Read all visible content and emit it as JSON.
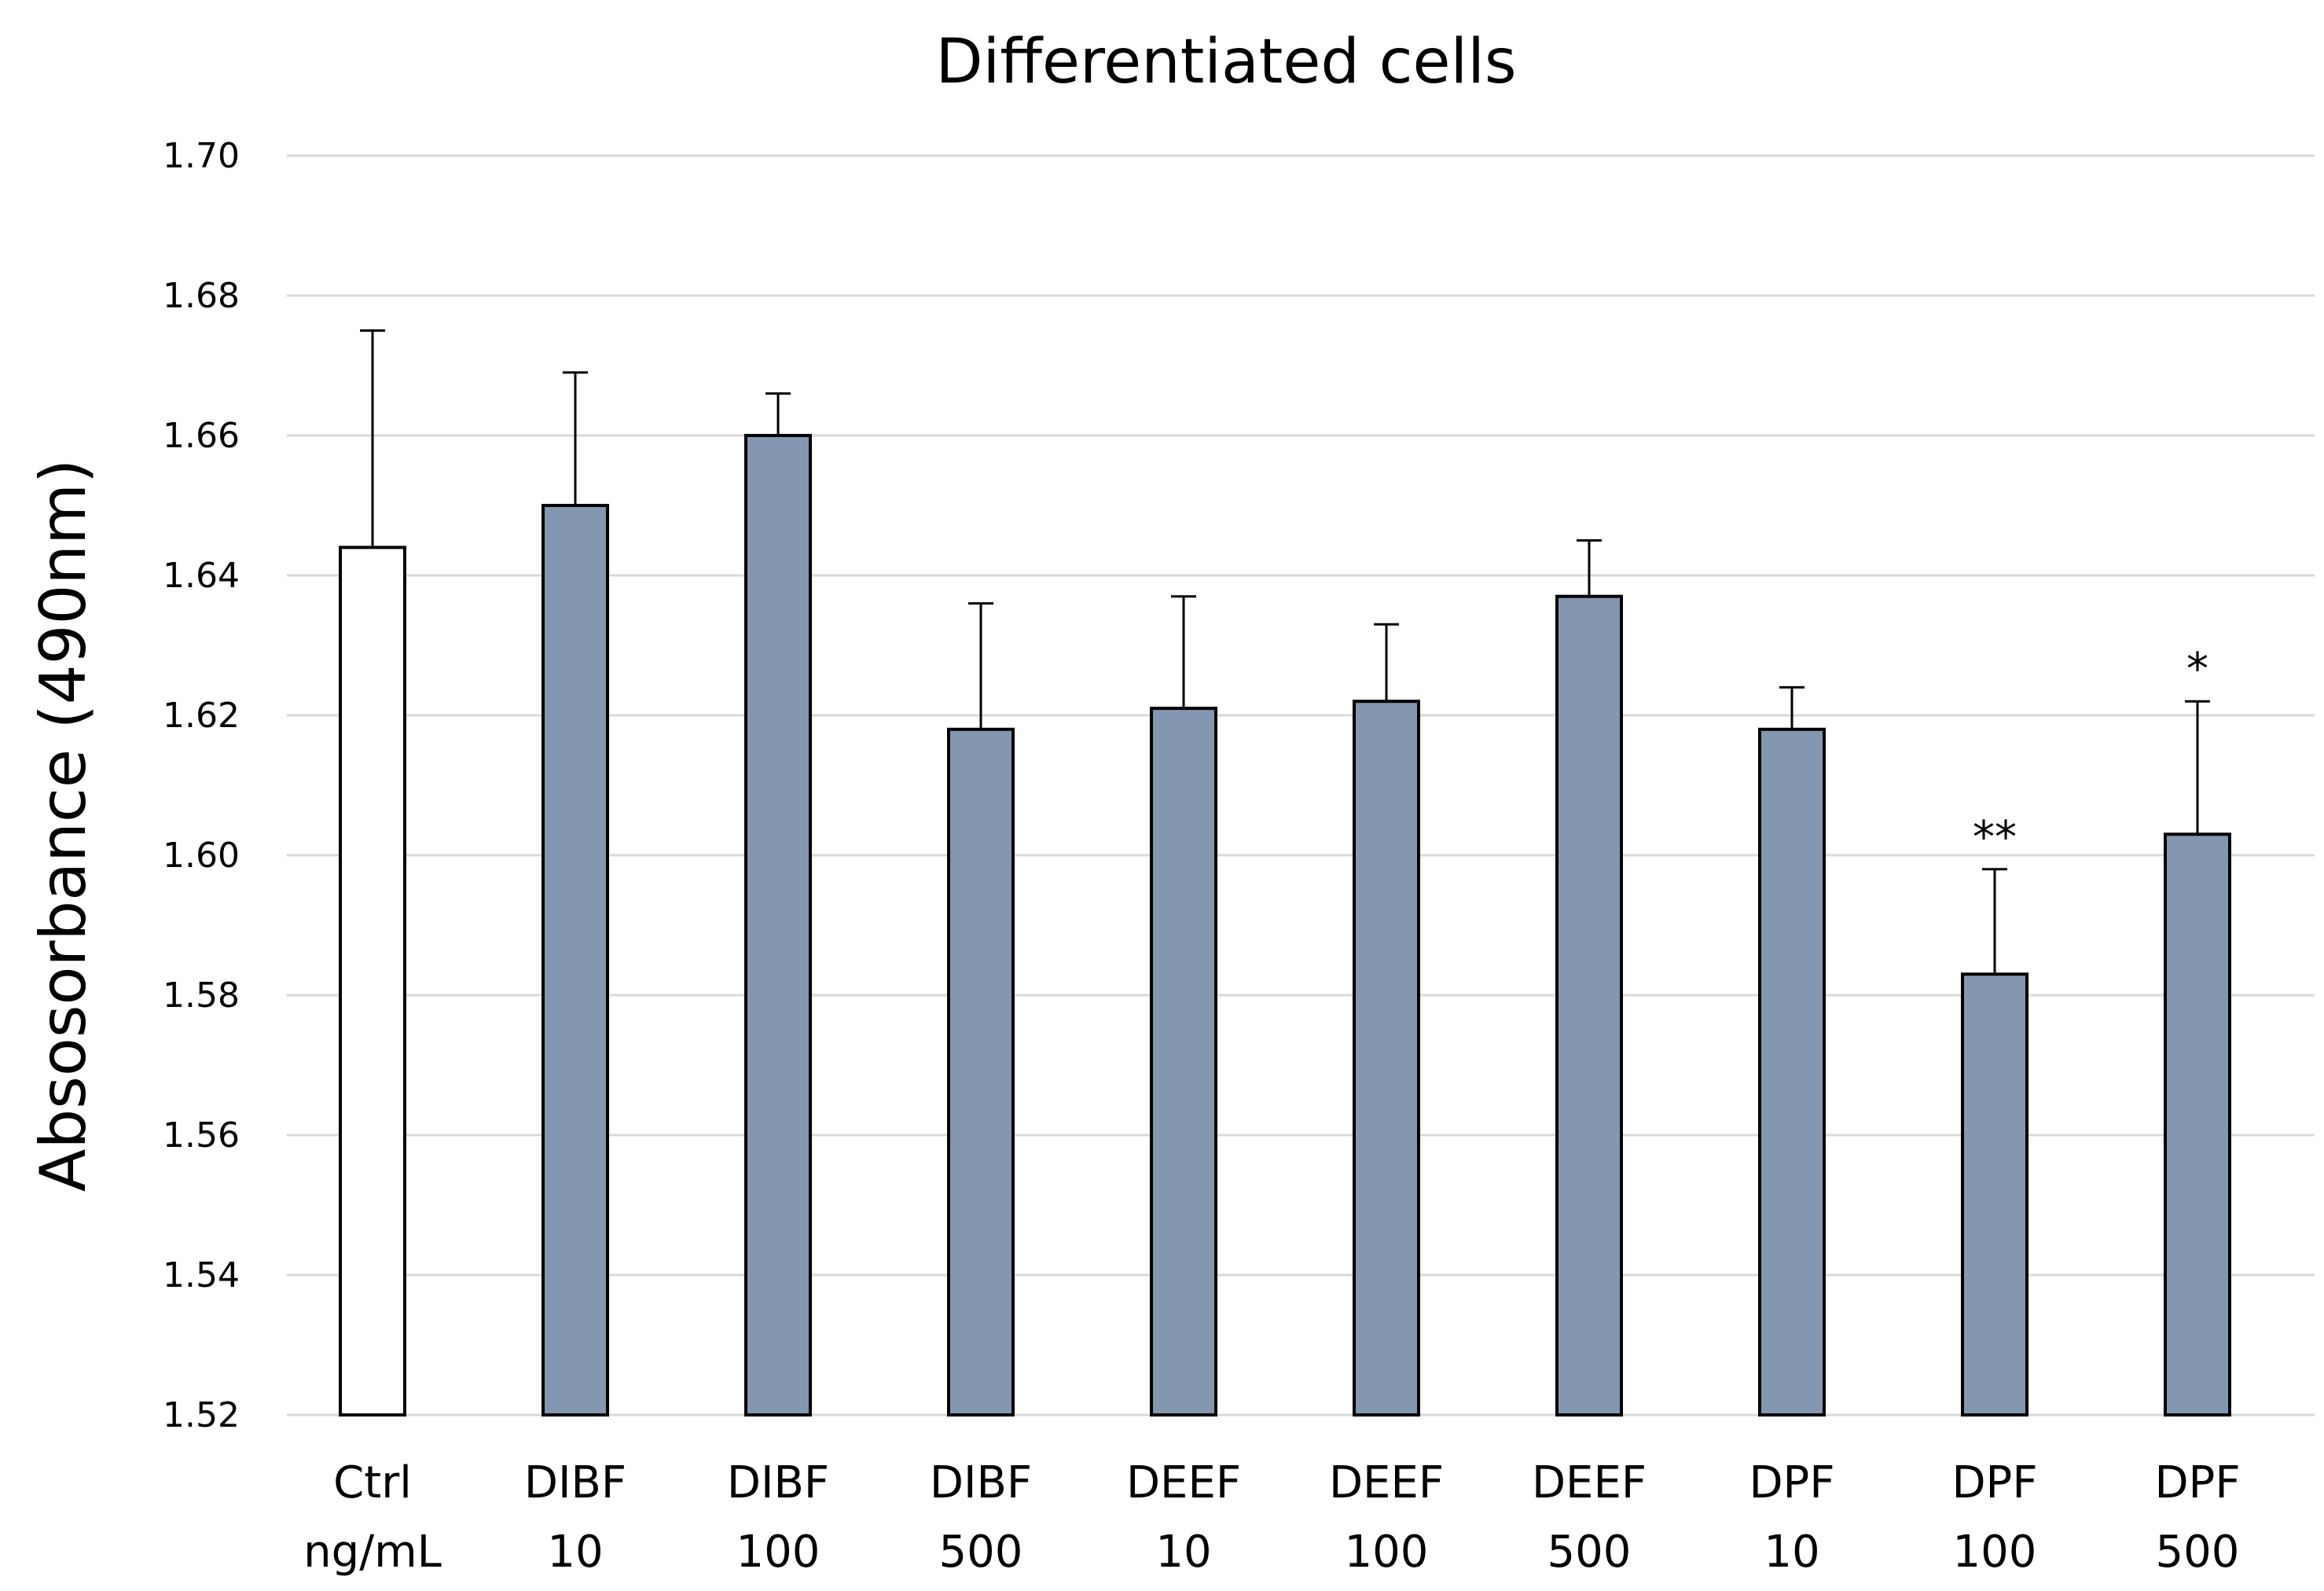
{
  "chart_data": {
    "type": "bar",
    "title": "Differentiated cells",
    "xlabel": "",
    "ylabel": "Absosorbance (490nm)",
    "ylim": [
      1.52,
      1.7
    ],
    "yticks": [
      "1.52",
      "1.54",
      "1.56",
      "1.58",
      "1.60",
      "1.62",
      "1.64",
      "1.66",
      "1.68",
      "1.70"
    ],
    "grid": true,
    "x_unit_label": "ng/mL",
    "categories": [
      {
        "name": "Ctrl",
        "dose": ""
      },
      {
        "name": "DIBF",
        "dose": "10"
      },
      {
        "name": "DIBF",
        "dose": "100"
      },
      {
        "name": "DIBF",
        "dose": "500"
      },
      {
        "name": "DEEF",
        "dose": "10"
      },
      {
        "name": "DEEF",
        "dose": "100"
      },
      {
        "name": "DEEF",
        "dose": "500"
      },
      {
        "name": "DPF",
        "dose": "10"
      },
      {
        "name": "DPF",
        "dose": "100"
      },
      {
        "name": "DPF",
        "dose": "500"
      }
    ],
    "values": [
      1.644,
      1.65,
      1.66,
      1.618,
      1.621,
      1.622,
      1.637,
      1.618,
      1.583,
      1.603
    ],
    "errors": [
      0.031,
      0.019,
      0.006,
      0.018,
      0.016,
      0.011,
      0.008,
      0.006,
      0.015,
      0.019
    ],
    "significance": [
      "",
      "",
      "",
      "",
      "",
      "",
      "",
      "",
      "**",
      "*"
    ],
    "colors": {
      "control": "#ffffff",
      "treatment": "#8497b0",
      "outline": "#000000",
      "grid": "#d9d9d9"
    }
  }
}
